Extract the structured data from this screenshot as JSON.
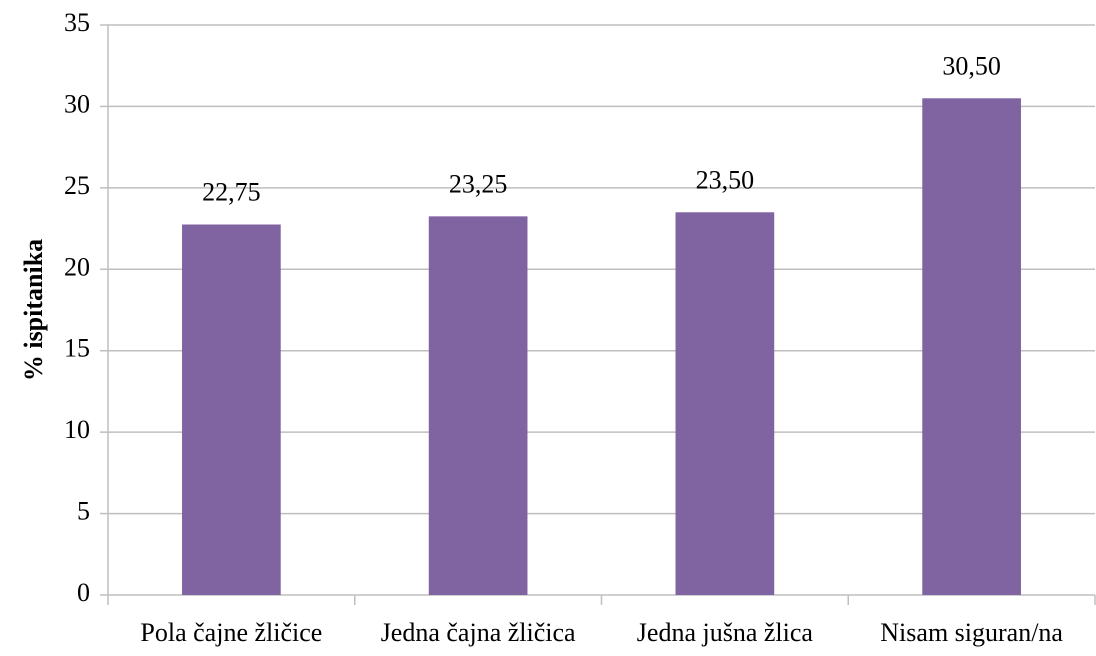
{
  "chart_data": {
    "type": "bar",
    "y_axis_label": "% ispitanika",
    "categories": [
      "Pola čajne žličice",
      "Jedna čajna žličica",
      "Jedna jušna žlica",
      "Nisam siguran/na"
    ],
    "values": [
      22.75,
      23.25,
      23.5,
      30.5
    ],
    "value_labels": [
      "22,75",
      "23,25",
      "23,50",
      "30,50"
    ],
    "color": "#8064a2",
    "ylim": [
      0,
      35
    ],
    "yticks": [
      0,
      5,
      10,
      15,
      20,
      25,
      30,
      35
    ],
    "grid": true
  }
}
